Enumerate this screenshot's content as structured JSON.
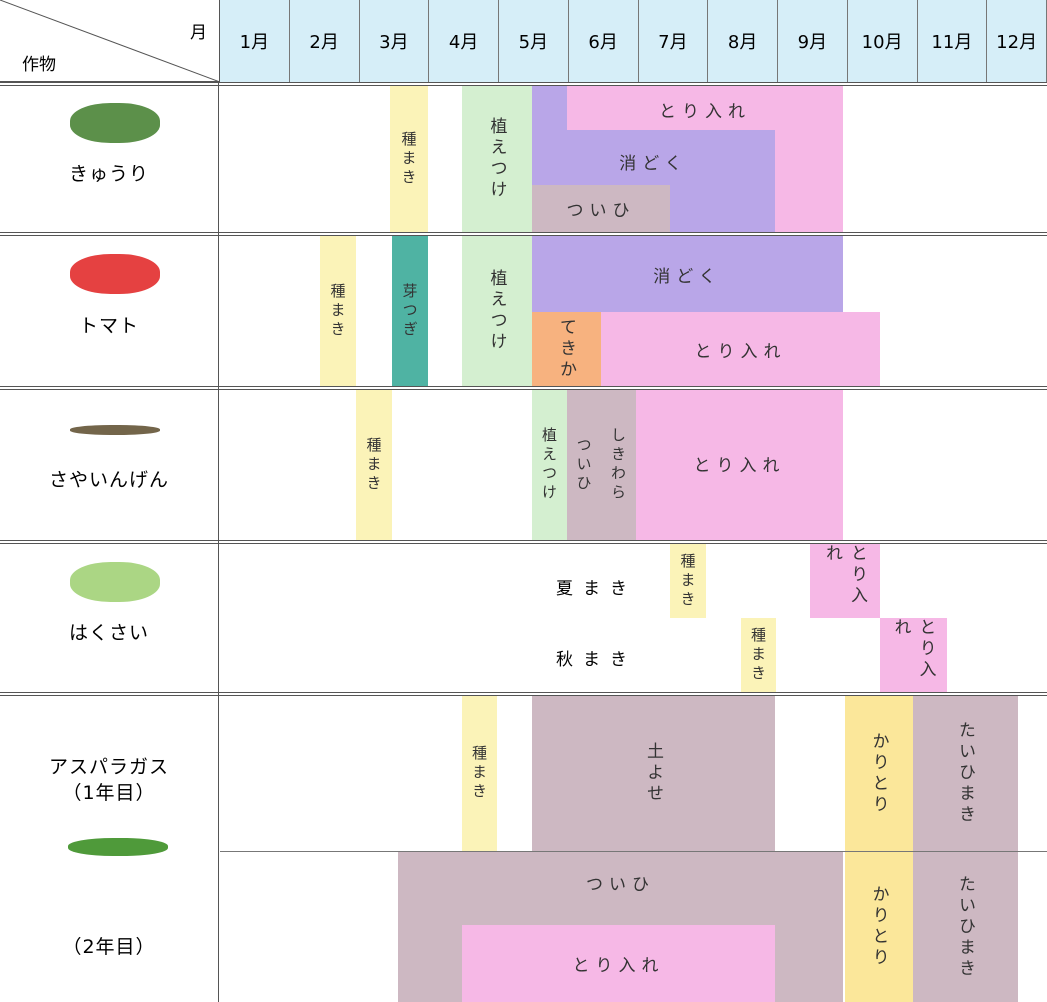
{
  "header": {
    "month_label": "月",
    "crop_label": "作物"
  },
  "months": [
    "1月",
    "2月",
    "3月",
    "4月",
    "5月",
    "6月",
    "7月",
    "8月",
    "9月",
    "10月",
    "11月",
    "12月"
  ],
  "crops": [
    {
      "name": "きゅうり",
      "tasks": [
        {
          "label": "種まき"
        },
        {
          "label": "植えつけ"
        },
        {
          "label": "とり入れ"
        },
        {
          "label": "消どく"
        },
        {
          "label": "ついひ"
        }
      ]
    },
    {
      "name": "トマト",
      "tasks": [
        {
          "label": "種まき"
        },
        {
          "label": "芽つぎ"
        },
        {
          "label": "植えつけ"
        },
        {
          "label": "消どく"
        },
        {
          "label": "てきか"
        },
        {
          "label": "とり入れ"
        }
      ]
    },
    {
      "name": "さやいんげん",
      "tasks": [
        {
          "label": "種まき"
        },
        {
          "label": "植えつけ"
        },
        {
          "label": "ついひ"
        },
        {
          "label": "しきわら"
        },
        {
          "label": "とり入れ"
        }
      ]
    },
    {
      "name": "はくさい",
      "sublabels": [
        "夏まき",
        "秋まき"
      ],
      "tasks": [
        {
          "label": "種まき"
        },
        {
          "label": "とり入れ"
        },
        {
          "label": "種まき"
        },
        {
          "label": "とり入れ"
        }
      ]
    },
    {
      "name": "アスパラガス",
      "sublabels": [
        "（1年目）",
        "（2年目）"
      ],
      "tasks": [
        {
          "label": "種まき"
        },
        {
          "label": "土よせ"
        },
        {
          "label": "かりとり"
        },
        {
          "label": "たいひまき"
        },
        {
          "label": "ついひ"
        },
        {
          "label": "とり入れ"
        },
        {
          "label": "かりとり"
        },
        {
          "label": "たいひまき"
        }
      ]
    }
  ]
}
